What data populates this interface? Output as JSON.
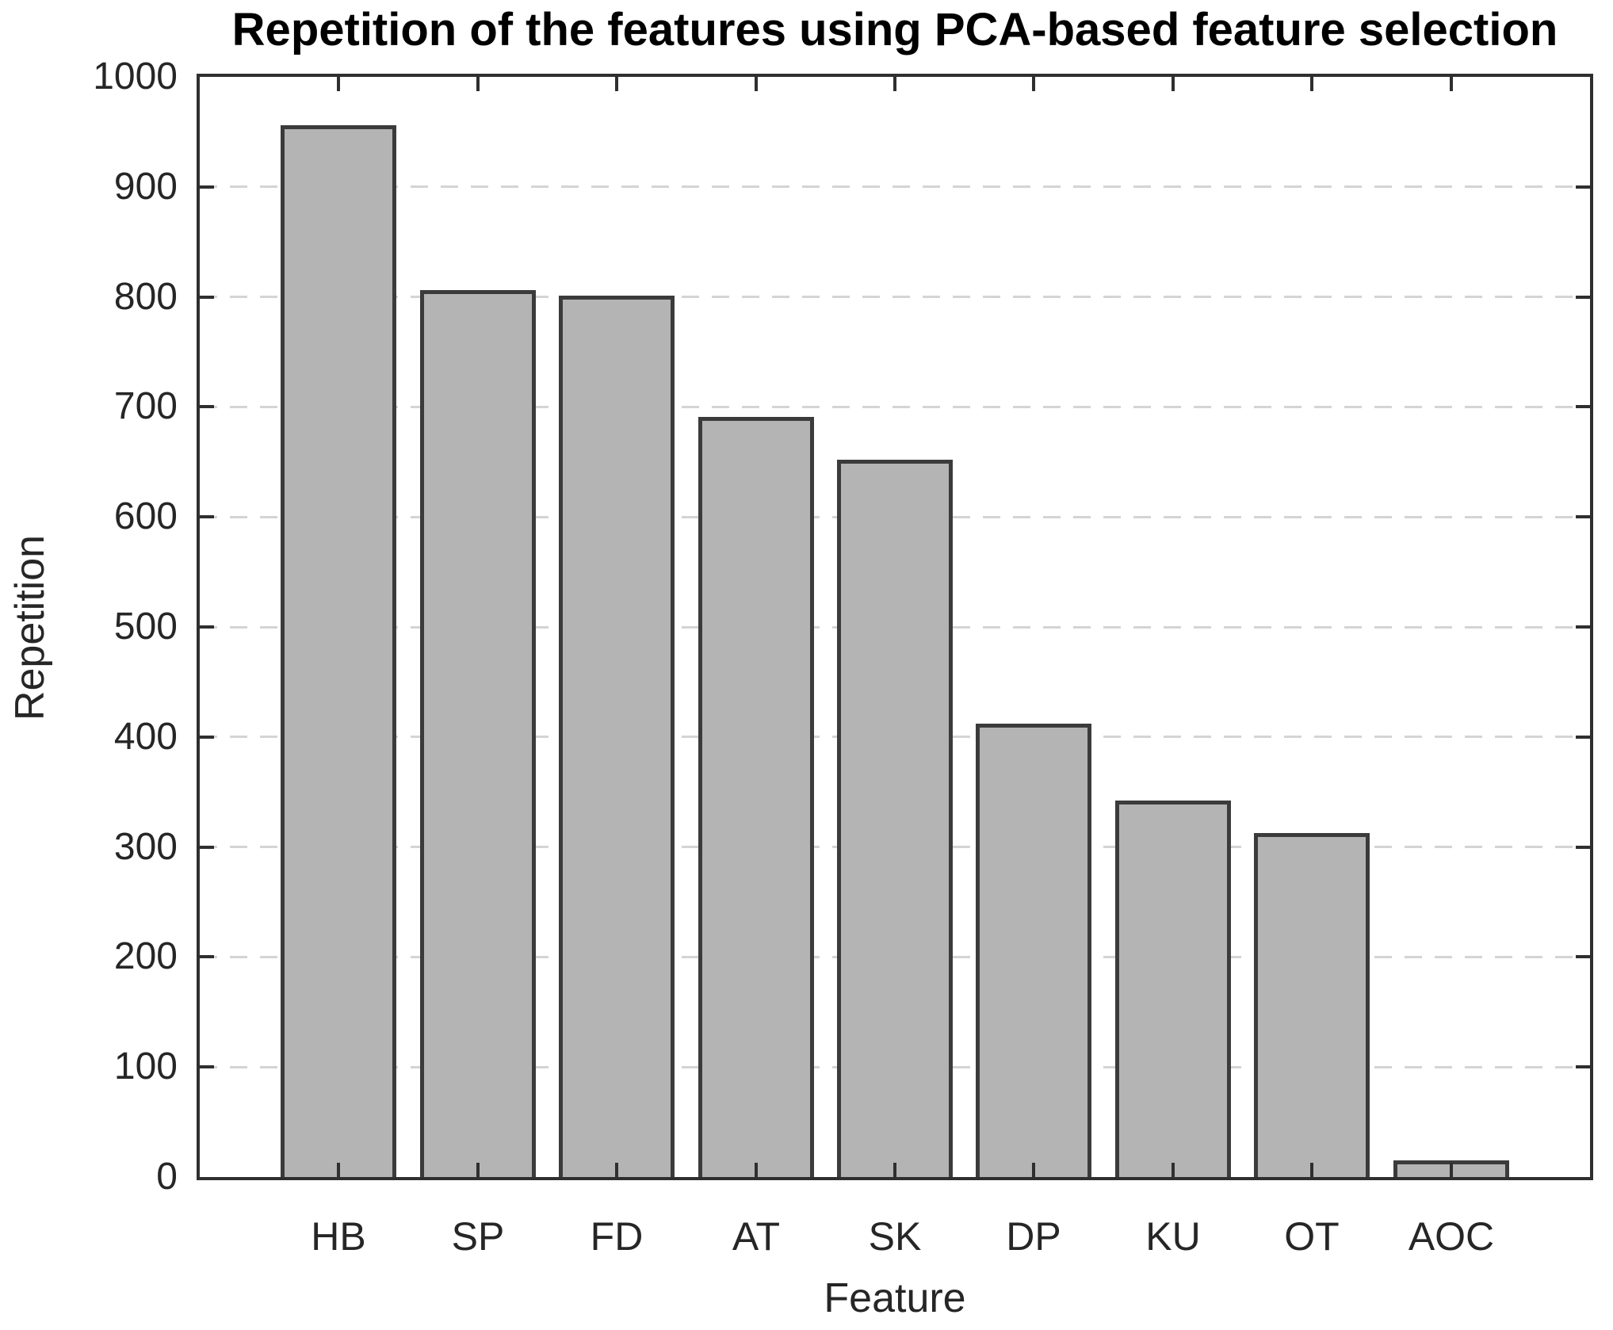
{
  "figure": {
    "background": "#ffffff"
  },
  "chart_data": {
    "type": "bar",
    "title": "Repetition of the features using PCA-based feature selection",
    "xlabel": "Feature",
    "ylabel": "Repetition",
    "categories": [
      "HB",
      "SP",
      "FD",
      "AT",
      "SK",
      "DP",
      "KU",
      "OT",
      "AOC"
    ],
    "values": [
      956,
      806,
      801,
      691,
      652,
      412,
      342,
      313,
      15
    ],
    "ylim": [
      0,
      1000
    ],
    "yticks": [
      0,
      100,
      200,
      300,
      400,
      500,
      600,
      700,
      800,
      900,
      1000
    ],
    "grid": {
      "axis": "y",
      "style": "dashed",
      "color": "#d4d4d4"
    },
    "colors": {
      "bar_fill": "#b4b4b4",
      "bar_edge": "#3b3b3b",
      "axis": "#2f2f2f",
      "tick_text": "#262626",
      "title_text": "#000000"
    },
    "bar_width_fraction": 0.83,
    "box": "on",
    "tick_direction": "in"
  }
}
